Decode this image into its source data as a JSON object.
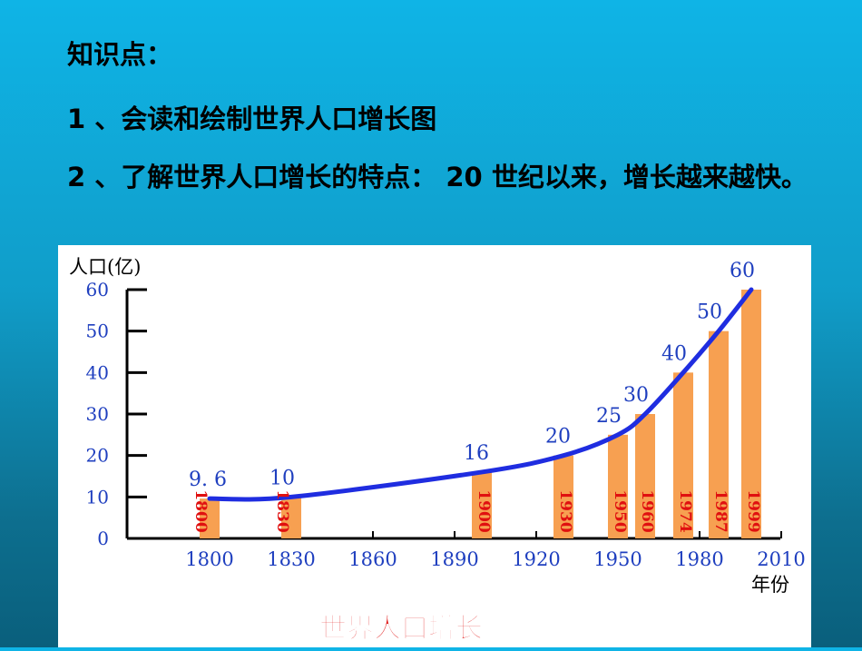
{
  "slide": {
    "heading": "知识点：",
    "point1": "1 、会读和绘制世界人口增长图",
    "point2": "2 、了解世界人口增长的特点： 20 世纪以来，增长越来越快。"
  },
  "chart_data": {
    "type": "bar",
    "title": "世界人口增长",
    "ylabel": "人口(亿)",
    "xlabel": "年份",
    "ylim": [
      0,
      60
    ],
    "yticks": [
      0,
      10,
      20,
      30,
      40,
      50,
      60
    ],
    "xlim": [
      1770,
      2010
    ],
    "xticks": [
      1800,
      1830,
      1860,
      1890,
      1920,
      1950,
      1980,
      2010
    ],
    "x": [
      1800,
      1830,
      1900,
      1930,
      1950,
      1960,
      1974,
      1987,
      1999
    ],
    "values": [
      9.6,
      10,
      16,
      20,
      25,
      30,
      40,
      50,
      60
    ],
    "value_labels": [
      "9. 6",
      "10",
      "16",
      "20",
      "25",
      "30",
      "40",
      "50",
      "60"
    ],
    "bar_labels": [
      "1800",
      "1830",
      "1900",
      "1930",
      "1950",
      "1960",
      "1974",
      "1987",
      "1999"
    ],
    "trend_line": true,
    "colors": {
      "bar": "#f7a051",
      "trend": "#1f2de0",
      "value_label": "#1f3fbf",
      "bar_label": "#e01010",
      "tick_label": "#1f3fbf",
      "title": "#e01818"
    }
  }
}
